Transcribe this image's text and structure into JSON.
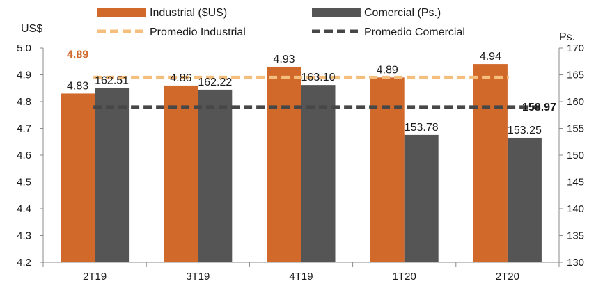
{
  "chart_data": {
    "type": "bar",
    "categories": [
      "2T19",
      "3T19",
      "4T19",
      "1T20",
      "2T20"
    ],
    "series": [
      {
        "name": "Industrial ($US)",
        "axis": "left",
        "color": "#D0692A",
        "values": [
          4.83,
          4.86,
          4.93,
          4.89,
          4.94
        ],
        "labels": [
          "4.83",
          "4.86",
          "4.93",
          "4.89",
          "4.94"
        ]
      },
      {
        "name": "Comercial (Ps.)",
        "axis": "right",
        "color": "#555555",
        "values": [
          162.51,
          162.22,
          163.1,
          153.78,
          153.25
        ],
        "labels": [
          "162.51",
          "162.22",
          "163.10",
          "153.78",
          "153.25"
        ]
      }
    ],
    "averages": [
      {
        "name": "Promedio Industrial",
        "axis": "left",
        "value": 4.89,
        "label": "4.89",
        "color": "#F6BE7C",
        "label_color": "#D0692A"
      },
      {
        "name": "Promedio Comercial",
        "axis": "right",
        "value": 158.97,
        "label": "158.97",
        "color": "#474747",
        "label_color": "#1a1a1a"
      }
    ],
    "y_left": {
      "unit": "US$",
      "ylim": [
        4.2,
        5.0
      ],
      "ticks": [
        "5.0",
        "4.9",
        "4.8",
        "4.7",
        "4.6",
        "4.5",
        "4.4",
        "4.3",
        "4.2"
      ]
    },
    "y_right": {
      "unit": "Ps.",
      "ylim": [
        130,
        170
      ],
      "ticks": [
        "170",
        "165",
        "160",
        "155",
        "150",
        "145",
        "140",
        "135",
        "130"
      ]
    },
    "legend_position": "top",
    "grid": false
  }
}
